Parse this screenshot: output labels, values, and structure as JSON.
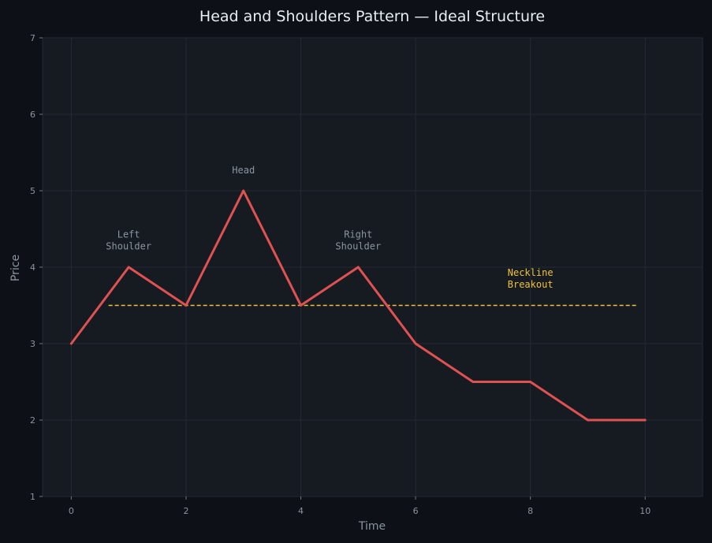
{
  "chart_data": {
    "type": "line",
    "title": "Head and Shoulders Pattern — Ideal Structure",
    "xlabel": "Time",
    "ylabel": "Price",
    "xlim": [
      -0.5,
      11
    ],
    "ylim": [
      1,
      7
    ],
    "xticks": [
      0,
      2,
      4,
      6,
      8,
      10
    ],
    "yticks": [
      1,
      2,
      3,
      4,
      5,
      6,
      7
    ],
    "grid": true,
    "series": [
      {
        "color": "#e05252",
        "x": [
          0,
          1,
          2,
          3,
          4,
          5,
          6,
          7,
          8,
          9,
          10
        ],
        "y": [
          3,
          4,
          3.5,
          5,
          3.5,
          4,
          3,
          2.5,
          2.5,
          2,
          2
        ]
      }
    ],
    "neckline": {
      "x": [
        0.65,
        9.85
      ],
      "y": 3.5,
      "style": "dashed",
      "color": "#f0c23b"
    },
    "annotations": [
      {
        "lines": [
          "Left",
          "Shoulder"
        ],
        "x": 1,
        "y": 4.35,
        "color": "#8b949e"
      },
      {
        "lines": [
          "Head"
        ],
        "x": 3,
        "y": 5.27,
        "color": "#8b949e"
      },
      {
        "lines": [
          "Right",
          "Shoulder"
        ],
        "x": 5,
        "y": 4.35,
        "color": "#8b949e"
      },
      {
        "lines": [
          "Neckline",
          "Breakout"
        ],
        "x": 8,
        "y": 3.85,
        "color": "#f0c23b"
      }
    ]
  }
}
